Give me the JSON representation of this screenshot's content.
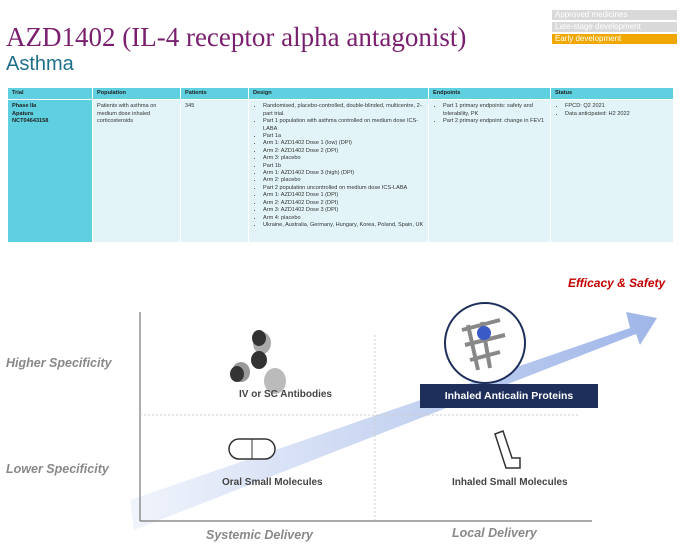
{
  "legend": [
    {
      "label": "Approved medicines",
      "color": "#d9d9d9"
    },
    {
      "label": "Late-stage development",
      "color": "#d9d9d9"
    },
    {
      "label": "Early development",
      "color": "#f0a800"
    }
  ],
  "title": "AZD1402 (IL-4 receptor alpha antagonist)",
  "subtitle": "Asthma",
  "table": {
    "headers": [
      "Trial",
      "Population",
      "Patients",
      "Design",
      "Endpoints",
      "Status"
    ],
    "row": {
      "trial": [
        "Phase IIa",
        "Apatura",
        "NCT04643158"
      ],
      "population": "Patients with asthma on medium dose inhaled corticosteroids",
      "patients": "345",
      "design": [
        "Randomised, placebo-controlled, double-blinded, multicentre, 2-part trial.",
        "Part 1 population with asthma controlled on medium dose ICS-LABA",
        "Part 1a",
        "Arm 1: AZD1402 Dose 1 (low) (DPI)",
        "Arm 2: AZD1402 Dose 2 (DPI)",
        "Arm 3: placebo",
        "Part 1b",
        "Arm 1: AZD1402 Dose 3 (high) (DPI)",
        "Arm 2: placebo",
        "Part 2 population uncontrolled on medium dose ICS-LABA",
        "Arm 1: AZD1402 Dose 1 (DPI)",
        "Arm 2: AZD1402 Dose 2 (DPI)",
        "Arm 3: AZD1402 Dose 3 (DPI)",
        "Arm 4: placebo",
        "Ukraine, Australia, Germany, Hungary, Korea, Poland, Spain, UK"
      ],
      "endpoints": [
        "Part 1 primary endpoints: safety and tolerability, PK",
        "Part 2 primary endpoint: change in FEV1"
      ],
      "status": [
        "FPCD: Q2 2021",
        "Data anticipated: H2 2022"
      ]
    }
  },
  "diagram": {
    "arrow_label": "Efficacy & Safety",
    "y_high": "Higher Specificity",
    "y_low": "Lower Specificity",
    "x_left": "Systemic Delivery",
    "x_right": "Local Delivery",
    "q_tl": "IV or SC Antibodies",
    "q_tr": "Inhaled Anticalin Proteins",
    "q_bl": "Oral Small Molecules",
    "q_br": "Inhaled Small Molecules",
    "colors": {
      "arrow_label": "#c00000",
      "highlight_box": "#1f2f5c",
      "arrow": "#9fb6e8"
    }
  }
}
